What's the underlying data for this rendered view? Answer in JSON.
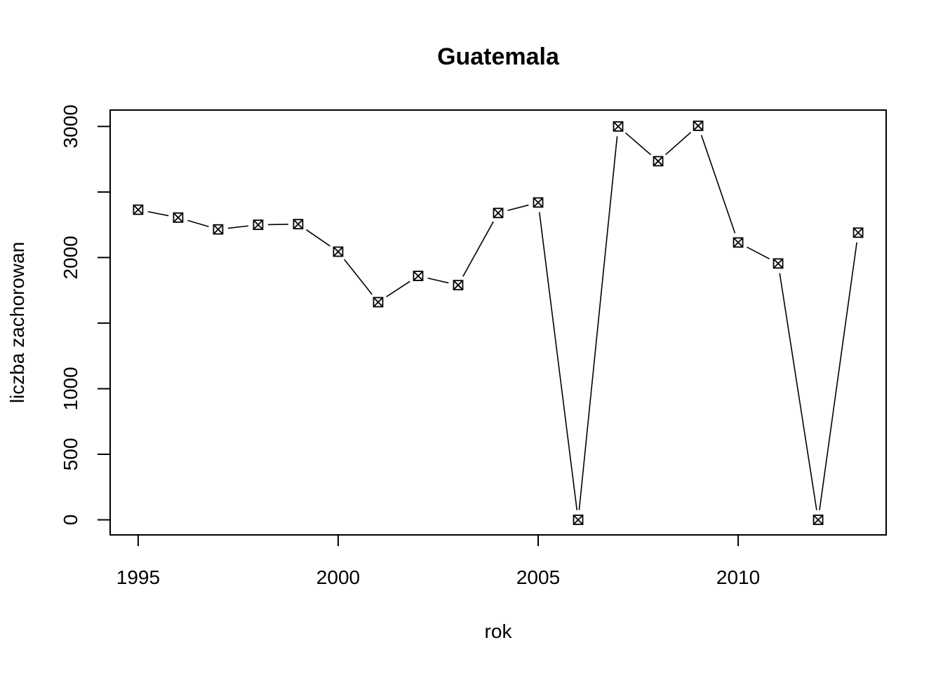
{
  "chart_data": {
    "type": "line",
    "title": "Guatemala",
    "xlabel": "rok",
    "ylabel": "liczba zachorowan",
    "x": [
      1995,
      1996,
      1997,
      1998,
      1999,
      2000,
      2001,
      2002,
      2003,
      2004,
      2005,
      2006,
      2007,
      2008,
      2009,
      2010,
      2011,
      2012,
      2013
    ],
    "series": [
      {
        "values": [
          2365,
          2305,
          2215,
          2250,
          2255,
          2045,
          1660,
          1860,
          1790,
          2340,
          2420,
          0,
          3000,
          2735,
          3005,
          2115,
          1955,
          0,
          2190
        ]
      }
    ],
    "xlim": [
      1994.3,
      2013.7
    ],
    "ylim": [
      -115,
      3125
    ],
    "xticks": [
      "1995",
      "2000",
      "2005",
      "2010"
    ],
    "yticks": [
      "0",
      "500",
      "1000",
      "2000",
      "3000"
    ],
    "y_tick_marks": [
      0,
      500,
      1000,
      1500,
      2000,
      2500,
      3000
    ],
    "marker": "boxed-x",
    "line_style": "gapped",
    "grid": false
  }
}
